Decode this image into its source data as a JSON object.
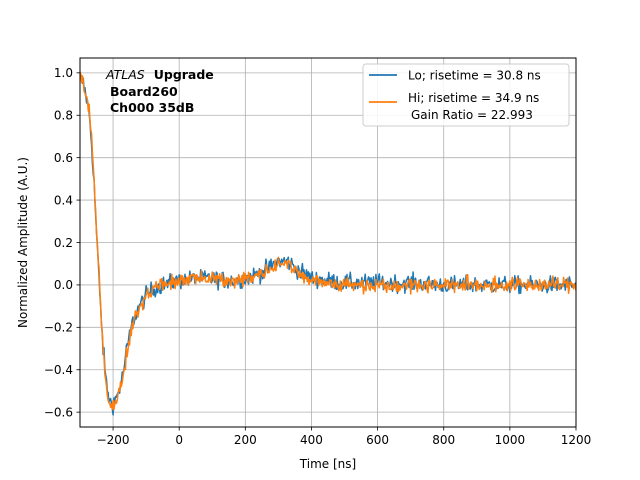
{
  "chart_data": {
    "type": "line",
    "title": "",
    "xlabel": "Time [ns]",
    "ylabel": "Normalized Amplitude (A.U.)",
    "xlim": [
      -300,
      1200
    ],
    "ylim": [
      -0.67,
      1.07
    ],
    "grid": true,
    "x_ticks": [
      -200,
      0,
      200,
      400,
      600,
      800,
      1000,
      1200
    ],
    "y_ticks": [
      -0.6,
      -0.4,
      -0.2,
      0.0,
      0.2,
      0.4,
      0.6,
      0.8,
      1.0
    ],
    "x_tick_labels": [
      "−200",
      "0",
      "200",
      "400",
      "600",
      "800",
      "1000",
      "1200"
    ],
    "y_tick_labels": [
      "−0.6",
      "−0.4",
      "−0.2",
      "0.0",
      "0.2",
      "0.4",
      "0.6",
      "0.8",
      "1.0"
    ],
    "annotation": {
      "atlas": "ATLAS",
      "upgrade": "Upgrade",
      "board": "Board260",
      "channel": "Ch000 35dB"
    },
    "legend_position": "top-right",
    "legend_extra": "Gain Ratio = 22.993",
    "series": [
      {
        "name": "Lo; risetime = 30.8 ns",
        "color": "#1f77b4",
        "noise": 0.04,
        "points": [
          [
            -300,
            0.98
          ],
          [
            -290,
            0.95
          ],
          [
            -280,
            0.88
          ],
          [
            -270,
            0.78
          ],
          [
            -260,
            0.55
          ],
          [
            -250,
            0.25
          ],
          [
            -240,
            -0.05
          ],
          [
            -230,
            -0.3
          ],
          [
            -220,
            -0.47
          ],
          [
            -210,
            -0.55
          ],
          [
            -200,
            -0.56
          ],
          [
            -190,
            -0.53
          ],
          [
            -180,
            -0.49
          ],
          [
            -170,
            -0.42
          ],
          [
            -160,
            -0.32
          ],
          [
            -150,
            -0.24
          ],
          [
            -140,
            -0.17
          ],
          [
            -120,
            -0.1
          ],
          [
            -100,
            -0.05
          ],
          [
            -80,
            -0.02
          ],
          [
            -50,
            0.0
          ],
          [
            0,
            0.02
          ],
          [
            50,
            0.03
          ],
          [
            100,
            0.03
          ],
          [
            150,
            0.02
          ],
          [
            200,
            0.03
          ],
          [
            250,
            0.06
          ],
          [
            300,
            0.11
          ],
          [
            330,
            0.11
          ],
          [
            360,
            0.07
          ],
          [
            400,
            0.03
          ],
          [
            450,
            0.02
          ],
          [
            500,
            0.01
          ],
          [
            600,
            0.01
          ],
          [
            700,
            0.01
          ],
          [
            800,
            0.0
          ],
          [
            900,
            0.0
          ],
          [
            1000,
            0.0
          ],
          [
            1100,
            0.0
          ],
          [
            1200,
            0.0
          ]
        ]
      },
      {
        "name": "Hi; risetime = 34.9 ns",
        "color": "#ff7f0e",
        "noise": 0.035,
        "points": [
          [
            -300,
            0.99
          ],
          [
            -290,
            0.96
          ],
          [
            -280,
            0.89
          ],
          [
            -270,
            0.79
          ],
          [
            -260,
            0.57
          ],
          [
            -250,
            0.27
          ],
          [
            -240,
            -0.04
          ],
          [
            -230,
            -0.3
          ],
          [
            -220,
            -0.48
          ],
          [
            -210,
            -0.56
          ],
          [
            -200,
            -0.57
          ],
          [
            -190,
            -0.54
          ],
          [
            -180,
            -0.5
          ],
          [
            -170,
            -0.43
          ],
          [
            -160,
            -0.33
          ],
          [
            -150,
            -0.25
          ],
          [
            -140,
            -0.18
          ],
          [
            -120,
            -0.11
          ],
          [
            -100,
            -0.06
          ],
          [
            -80,
            -0.02
          ],
          [
            -50,
            0.0
          ],
          [
            0,
            0.02
          ],
          [
            50,
            0.03
          ],
          [
            100,
            0.03
          ],
          [
            150,
            0.02
          ],
          [
            200,
            0.03
          ],
          [
            250,
            0.06
          ],
          [
            300,
            0.1
          ],
          [
            330,
            0.1
          ],
          [
            360,
            0.06
          ],
          [
            400,
            0.02
          ],
          [
            450,
            0.01
          ],
          [
            500,
            0.0
          ],
          [
            600,
            0.0
          ],
          [
            700,
            0.0
          ],
          [
            800,
            0.0
          ],
          [
            900,
            0.0
          ],
          [
            1000,
            0.0
          ],
          [
            1100,
            0.0
          ],
          [
            1200,
            0.0
          ]
        ]
      }
    ]
  }
}
